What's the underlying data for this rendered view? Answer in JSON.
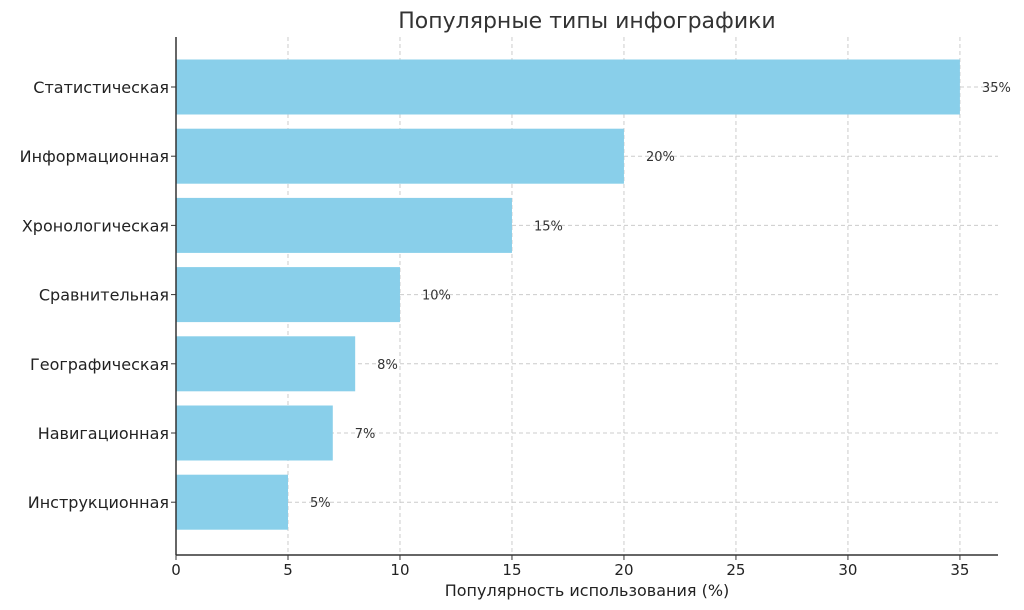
{
  "chart_data": {
    "type": "bar",
    "orientation": "horizontal",
    "title": "Популярные типы инфографики",
    "xlabel": "Популярность использования (%)",
    "ylabel": "",
    "categories": [
      "Статистическая",
      "Информационная",
      "Хронологическая",
      "Сравнительная",
      "Географическая",
      "Навигационная",
      "Инструкционная"
    ],
    "values": [
      35,
      20,
      15,
      10,
      8,
      7,
      5
    ],
    "value_labels": [
      "35%",
      "20%",
      "15%",
      "10%",
      "8%",
      "7%",
      "5%"
    ],
    "xlim": [
      0,
      36.7
    ],
    "xticks": [
      0,
      5,
      10,
      15,
      20,
      25,
      30,
      35
    ],
    "grid": true,
    "colors": {
      "bar": "#89CFEA",
      "grid": "#cccccc",
      "axis": "#333333"
    }
  }
}
